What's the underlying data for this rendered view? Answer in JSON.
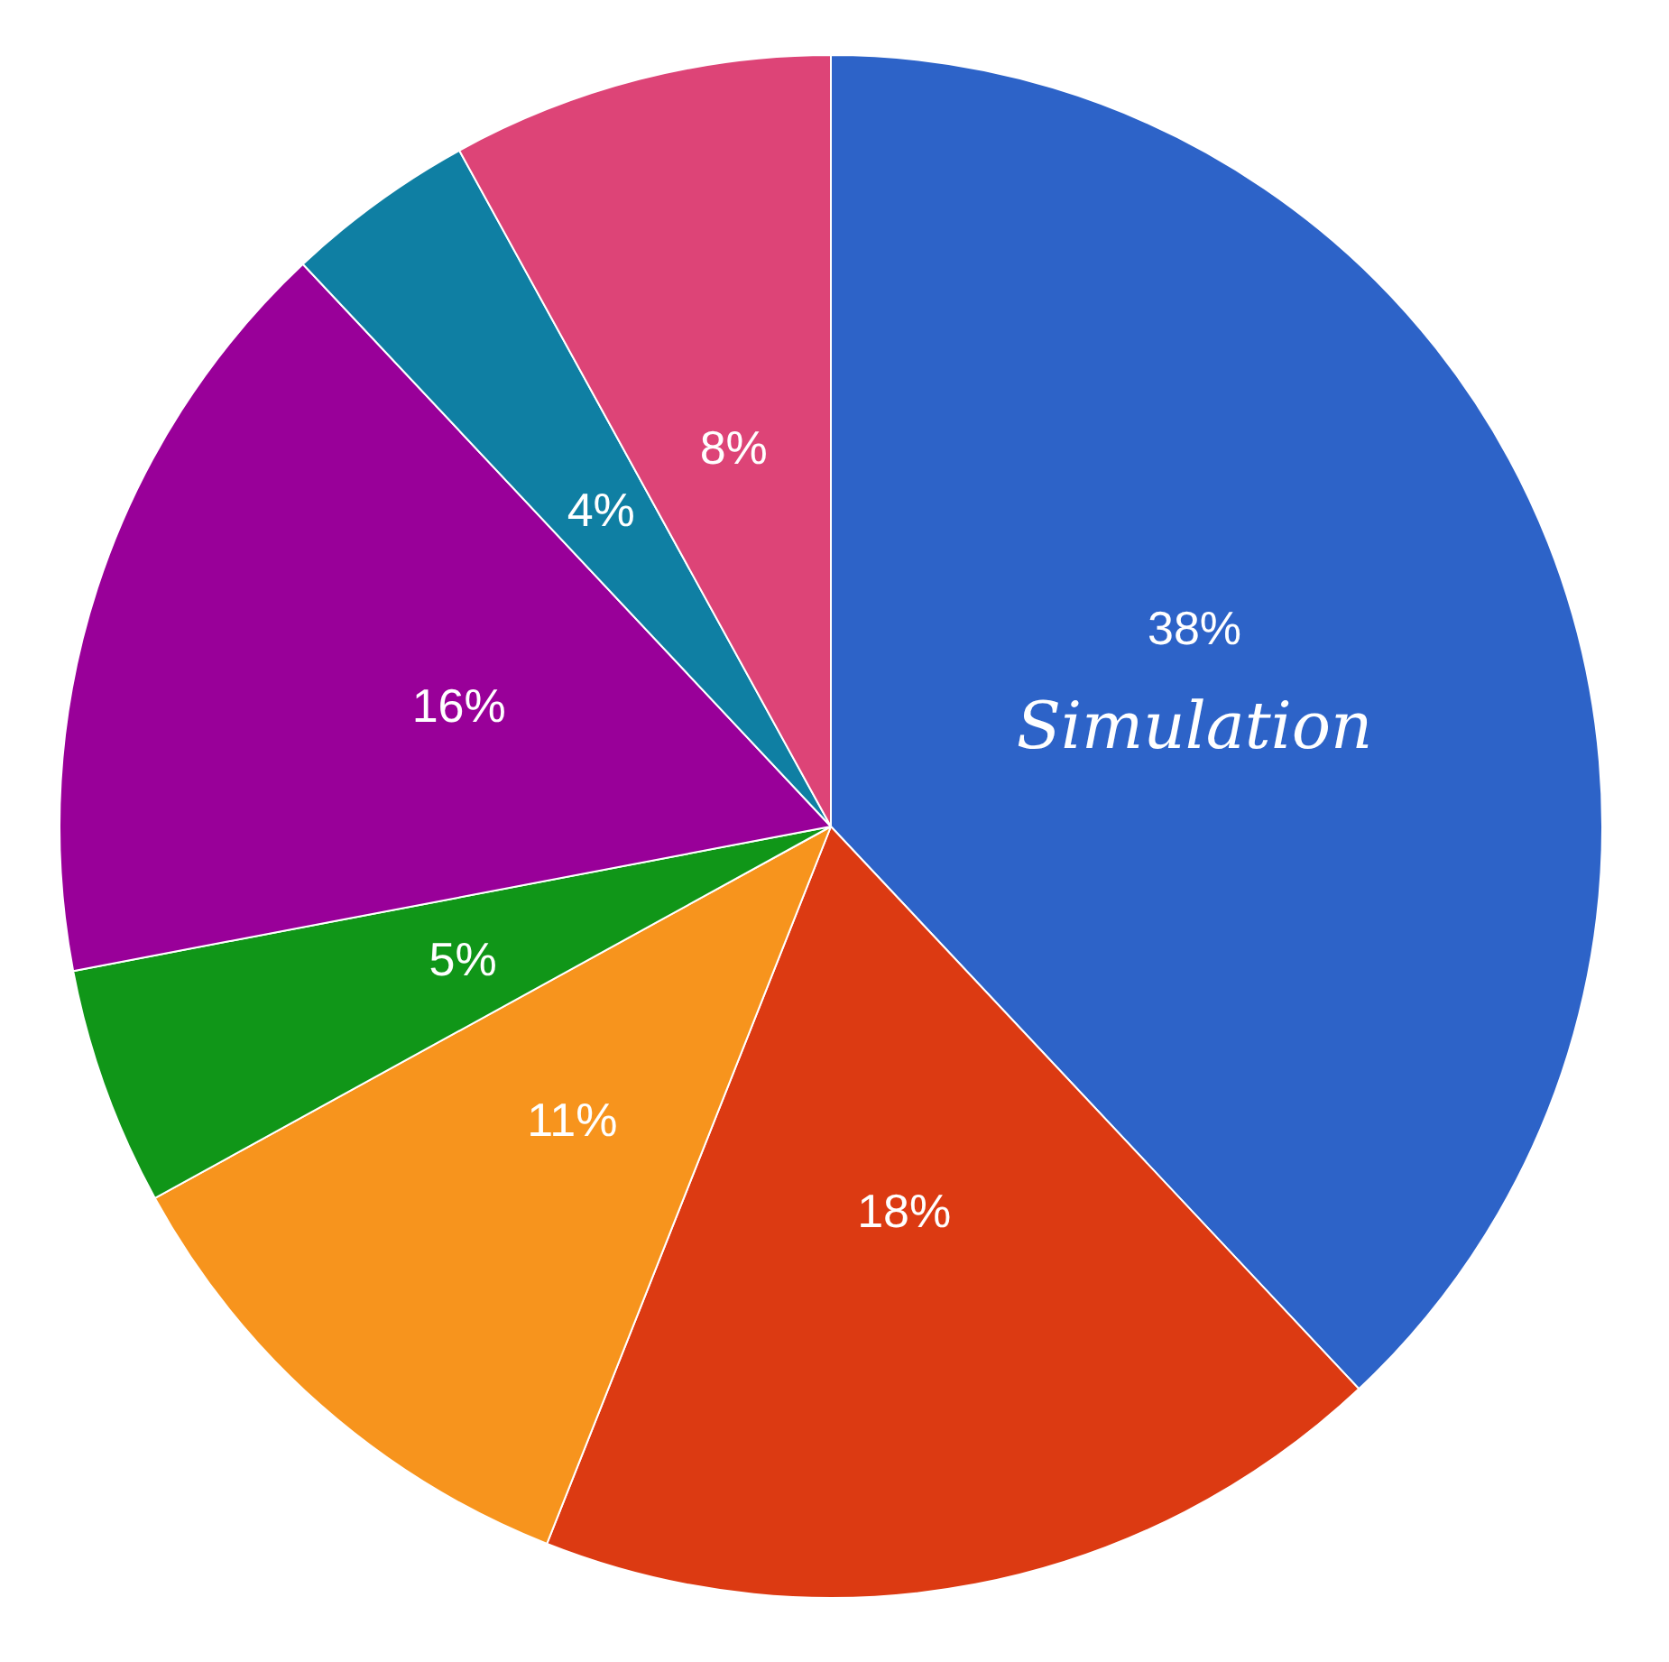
{
  "chart_data": {
    "type": "pie",
    "categories": [
      "Simulation",
      null,
      null,
      null,
      null,
      null,
      null
    ],
    "values": [
      38,
      18,
      11,
      5,
      16,
      4,
      8
    ],
    "value_labels": [
      "38%",
      "18%",
      "11%",
      "5%",
      "16%",
      "4%",
      "8%"
    ],
    "colors": [
      "#2d63c8",
      "#dc3a12",
      "#f7941d",
      "#109618",
      "#990099",
      "#0f7fa3",
      "#dd4477"
    ],
    "legend": false
  }
}
